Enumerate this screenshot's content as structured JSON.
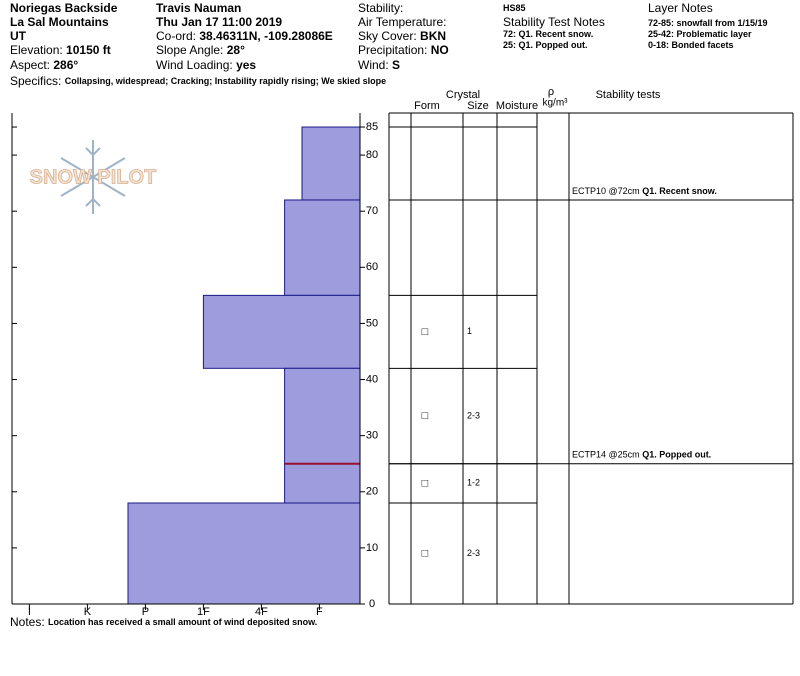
{
  "header": {
    "location": "Noriegas Backside",
    "range": "La Sal Mountains",
    "state": "UT",
    "elevation": {
      "label": "Elevation:",
      "value": "10150 ft"
    },
    "aspect": {
      "label": "Aspect:",
      "value": "286°"
    },
    "observer": "Travis Nauman",
    "date": "Thu Jan 17 11:00 2019",
    "coord": {
      "label": "Co-ord:",
      "value": "38.46311N, -109.28086E"
    },
    "slope": {
      "label": "Slope Angle:",
      "value": "28°"
    },
    "wind_loading": {
      "label": "Wind Loading:",
      "value": "yes"
    },
    "stability": {
      "label": "Stability:"
    },
    "air_temp": {
      "label": "Air Temperature:"
    },
    "sky": {
      "label": "Sky Cover:",
      "value": "BKN"
    },
    "precip": {
      "label": "Precipitation:",
      "value": "NO"
    },
    "wind": {
      "label": "Wind:",
      "value": "S"
    },
    "hs": "HS85",
    "stability_notes_title": "Stability Test Notes",
    "stability_notes": [
      "72: Q1. Recent snow.",
      "25: Q1. Popped out."
    ],
    "layer_notes_title": "Layer Notes",
    "layer_notes": [
      "72-85: snowfall from 1/15/19",
      "25-42: Problematic layer",
      "0-18: Bonded facets"
    ],
    "specifics": {
      "label": "Specifics:",
      "value": "Collapsing, widespread; Cracking; Instability rapidly rising; We skied slope"
    }
  },
  "notes": {
    "label": "Notes:",
    "value": "Location has received a small amount of wind deposited snow."
  },
  "logo": "SNOW PILOT",
  "chart_data": {
    "type": "snow-profile",
    "ylim": [
      0,
      87.5
    ],
    "yticks": [
      0,
      10,
      20,
      30,
      40,
      50,
      60,
      70,
      80,
      85
    ],
    "xlim": [
      0.7,
      6.7
    ],
    "xticks": [
      {
        "value": 1,
        "label": "I"
      },
      {
        "value": 2,
        "label": "K"
      },
      {
        "value": 3,
        "label": "P"
      },
      {
        "value": 4,
        "label": "1F"
      },
      {
        "value": 5,
        "label": "4F"
      },
      {
        "value": 6,
        "label": "F"
      }
    ],
    "columns": {
      "crystal": "Crystal",
      "form": "Form",
      "size": "Size",
      "moisture": "Moisture",
      "rho": "ρ",
      "density_unit": "kg/m³",
      "tests": "Stability tests"
    },
    "layers": {
      "top": [
        85,
        72,
        55,
        42,
        25,
        18
      ],
      "bottom": [
        72,
        55,
        42,
        25,
        18,
        0
      ],
      "hardness": [
        5.7,
        5.4,
        4.0,
        5.4,
        5.4,
        2.7
      ],
      "form": [
        null,
        null,
        "□",
        "□",
        "□",
        "□"
      ],
      "size": [
        null,
        null,
        "1",
        "2-3",
        "1-2",
        "2-3"
      ]
    },
    "highlight_depth": 25,
    "highlight_color": "#9a1030",
    "bar_color": "#9d9cdc",
    "tests": [
      {
        "depth": 72,
        "name": "ECTP10 @72cm",
        "comment": "Q1. Recent snow."
      },
      {
        "depth": 25,
        "name": "ECTP14 @25cm",
        "comment": "Q1. Popped out."
      }
    ]
  }
}
